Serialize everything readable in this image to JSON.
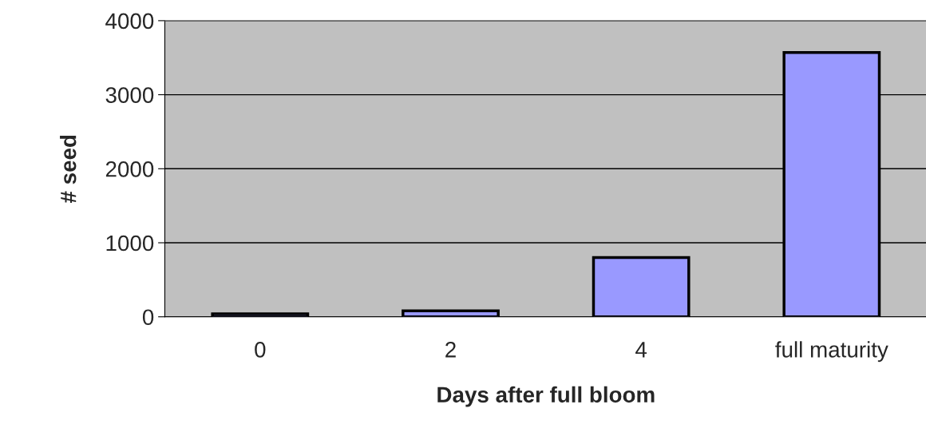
{
  "chart_data": {
    "type": "bar",
    "xlabel": "Days after full bloom",
    "ylabel": "# seed",
    "categories": [
      "0",
      "2",
      "4",
      "full maturity"
    ],
    "values": [
      40,
      80,
      800,
      3570
    ],
    "color": "#9999ff",
    "ylim": [
      0,
      4000
    ],
    "yticks": [
      0,
      1000,
      2000,
      3000,
      4000
    ],
    "grid": "y",
    "legend": false
  }
}
